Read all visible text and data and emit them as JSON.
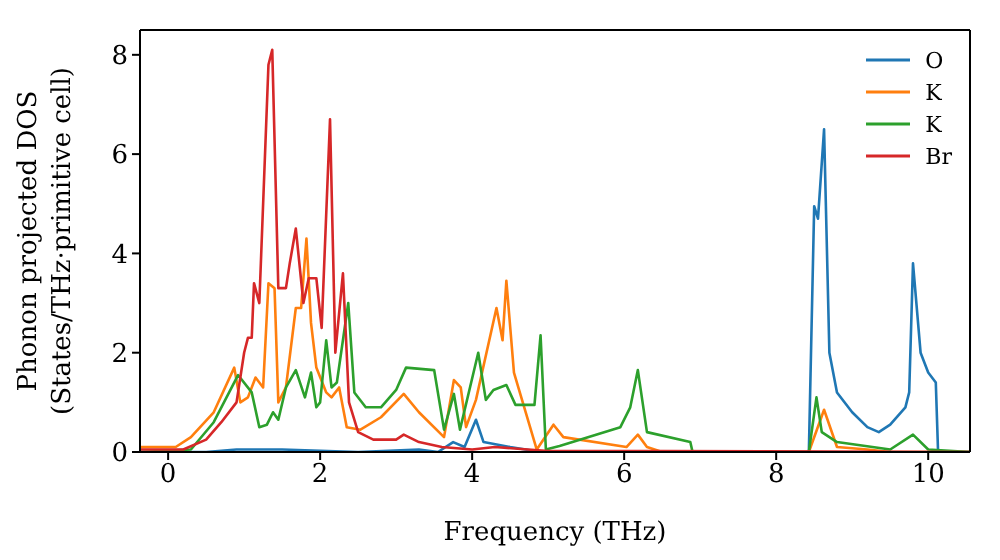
{
  "chart_data": {
    "type": "line",
    "xlabel": "Frequency (THz)",
    "ylabel": "Phonon projected DOS\n(States/THz·primitive cell)",
    "xlim": [
      -0.37,
      10.55
    ],
    "ylim": [
      0,
      8.5
    ],
    "xticks": [
      0,
      2,
      4,
      6,
      8,
      10
    ],
    "yticks": [
      0,
      2,
      4,
      6,
      8
    ],
    "legend": "top right",
    "marker": "none",
    "line_style": "solid",
    "series": [
      {
        "name": "O",
        "color": "#1f77b4",
        "x": [
          -0.37,
          0.5,
          0.9,
          1.5,
          2.5,
          3.3,
          3.55,
          3.75,
          3.9,
          4.05,
          4.15,
          4.5,
          4.9,
          8.43,
          8.5,
          8.55,
          8.63,
          8.7,
          8.8,
          9.0,
          9.2,
          9.35,
          9.5,
          9.7,
          9.75,
          9.8,
          9.9,
          10.0,
          10.1,
          10.13,
          10.55
        ],
        "values": [
          0,
          0,
          0.05,
          0.05,
          0,
          0.05,
          0,
          0.2,
          0.1,
          0.65,
          0.2,
          0.1,
          0,
          0,
          4.95,
          4.7,
          6.5,
          2.0,
          1.2,
          0.8,
          0.5,
          0.4,
          0.55,
          0.9,
          1.2,
          3.8,
          2.0,
          1.6,
          1.4,
          0,
          0
        ]
      },
      {
        "name": "K",
        "color": "#ff7f0e",
        "x": [
          -0.37,
          0.1,
          0.3,
          0.6,
          0.87,
          0.95,
          1.05,
          1.15,
          1.25,
          1.32,
          1.4,
          1.45,
          1.55,
          1.68,
          1.75,
          1.82,
          1.88,
          1.95,
          2.08,
          2.15,
          2.25,
          2.35,
          2.53,
          2.8,
          3.1,
          3.3,
          3.63,
          3.76,
          3.85,
          3.92,
          4.05,
          4.32,
          4.4,
          4.45,
          4.55,
          4.85,
          5.07,
          5.2,
          6.03,
          6.18,
          6.3,
          6.5,
          8.43,
          8.63,
          8.8,
          9.2,
          9.5,
          10.55
        ],
        "values": [
          0.1,
          0.1,
          0.3,
          0.8,
          1.7,
          1.0,
          1.1,
          1.5,
          1.3,
          3.4,
          3.3,
          1.0,
          1.3,
          2.9,
          2.9,
          4.3,
          2.6,
          1.7,
          1.2,
          1.1,
          1.3,
          0.5,
          0.45,
          0.7,
          1.17,
          0.8,
          0.3,
          1.45,
          1.3,
          0.5,
          1.05,
          2.9,
          2.25,
          3.45,
          1.6,
          0.05,
          0.55,
          0.3,
          0.1,
          0.35,
          0.1,
          0,
          0,
          0.85,
          0.1,
          0.05,
          0,
          0
        ]
      },
      {
        "name": "K",
        "color": "#2ca02c",
        "x": [
          -0.37,
          0.3,
          0.6,
          0.92,
          1.1,
          1.2,
          1.3,
          1.38,
          1.45,
          1.55,
          1.68,
          1.8,
          1.88,
          1.95,
          2.0,
          2.08,
          2.15,
          2.22,
          2.37,
          2.45,
          2.6,
          2.8,
          3.0,
          3.13,
          3.5,
          3.63,
          3.76,
          3.84,
          4.08,
          4.18,
          4.28,
          4.45,
          4.57,
          4.82,
          4.9,
          4.97,
          5.15,
          5.95,
          6.08,
          6.18,
          6.3,
          6.87,
          6.9,
          8.43,
          8.53,
          8.6,
          8.8,
          9.5,
          9.8,
          10.0,
          10.55
        ],
        "values": [
          0,
          0.05,
          0.6,
          1.55,
          1.2,
          0.5,
          0.55,
          0.8,
          0.65,
          1.3,
          1.65,
          1.1,
          1.6,
          0.9,
          1.0,
          2.25,
          1.3,
          1.4,
          3.0,
          1.2,
          0.9,
          0.9,
          1.25,
          1.7,
          1.65,
          0.45,
          1.17,
          0.45,
          2.0,
          1.05,
          1.25,
          1.35,
          0.95,
          0.95,
          2.35,
          0.05,
          0.12,
          0.5,
          0.9,
          1.65,
          0.4,
          0.2,
          0,
          0,
          1.1,
          0.4,
          0.2,
          0.05,
          0.35,
          0.05,
          0
        ]
      },
      {
        "name": "Br",
        "color": "#d62728",
        "x": [
          -0.37,
          0.2,
          0.5,
          0.7,
          0.9,
          1.0,
          1.05,
          1.1,
          1.13,
          1.2,
          1.32,
          1.37,
          1.45,
          1.55,
          1.6,
          1.68,
          1.78,
          1.85,
          1.95,
          2.02,
          2.13,
          2.2,
          2.3,
          2.38,
          2.5,
          2.7,
          3.0,
          3.1,
          3.3,
          3.6,
          4.0,
          4.3,
          5.0,
          6.5,
          10.55
        ],
        "values": [
          0.05,
          0.05,
          0.25,
          0.6,
          1.0,
          2.0,
          2.3,
          2.3,
          3.4,
          3.0,
          7.8,
          8.1,
          3.3,
          3.3,
          3.8,
          4.5,
          3.0,
          3.5,
          3.5,
          2.5,
          6.7,
          2.0,
          3.6,
          1.0,
          0.4,
          0.25,
          0.25,
          0.35,
          0.2,
          0.1,
          0.05,
          0.1,
          0.02,
          0.02,
          0
        ]
      }
    ]
  }
}
